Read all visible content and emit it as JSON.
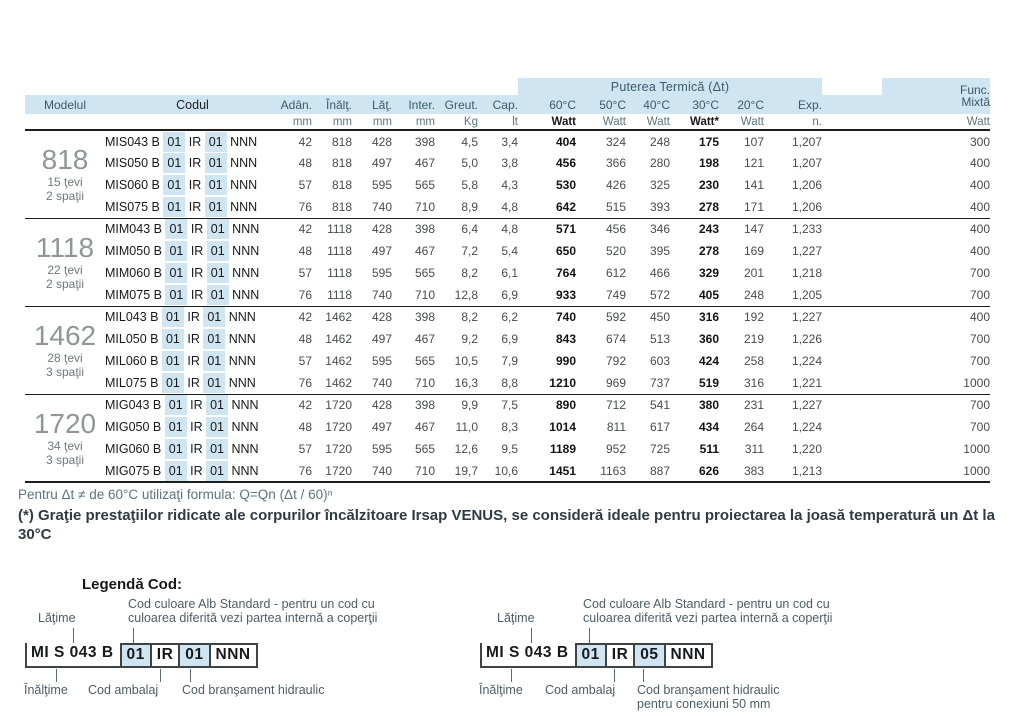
{
  "colors": {
    "header_band_blue": "#cfe6f2",
    "code_highlight_blue": "#cfe6f2",
    "rule_black": "#1c1c1c"
  },
  "table": {
    "power_header": "Puterea Termică (Δt)",
    "func_header_line1": "Func.",
    "func_header_line2": "Mixtă",
    "func_unit": "Watt",
    "columns": [
      "Modelul",
      "Codul",
      "Adân.",
      "Înălţ.",
      "Lăţ.",
      "Inter.",
      "Greut.",
      "Cap.",
      "60°C",
      "50°C",
      "40°C",
      "30°C",
      "20°C",
      "Exp."
    ],
    "units": [
      "mm",
      "mm",
      "mm",
      "mm",
      "Kg",
      "lt",
      "Watt",
      "Watt",
      "Watt",
      "Watt*",
      "Watt",
      "n."
    ],
    "groups": [
      {
        "model": "818",
        "tevi": "15 ţevi",
        "spatii": "2 spaţii",
        "rows": [
          {
            "code": [
              "MIS043 B",
              "01",
              "IR",
              "01",
              "NNN"
            ],
            "values": [
              "42",
              "818",
              "428",
              "398",
              "4,5",
              "3,4",
              "404",
              "324",
              "248",
              "175",
              "107",
              "1,207",
              "300"
            ]
          },
          {
            "code": [
              "MIS050 B",
              "01",
              "IR",
              "01",
              "NNN"
            ],
            "values": [
              "48",
              "818",
              "497",
              "467",
              "5,0",
              "3,8",
              "456",
              "366",
              "280",
              "198",
              "121",
              "1,207",
              "400"
            ]
          },
          {
            "code": [
              "MIS060 B",
              "01",
              "IR",
              "01",
              "NNN"
            ],
            "values": [
              "57",
              "818",
              "595",
              "565",
              "5,8",
              "4,3",
              "530",
              "426",
              "325",
              "230",
              "141",
              "1,206",
              "400"
            ]
          },
          {
            "code": [
              "MIS075 B",
              "01",
              "IR",
              "01",
              "NNN"
            ],
            "values": [
              "76",
              "818",
              "740",
              "710",
              "8,9",
              "4,8",
              "642",
              "515",
              "393",
              "278",
              "171",
              "1,206",
              "400"
            ]
          }
        ]
      },
      {
        "model": "1118",
        "tevi": "22 ţevi",
        "spatii": "2 spaţii",
        "rows": [
          {
            "code": [
              "MIM043 B",
              "01",
              "IR",
              "01",
              "NNN"
            ],
            "values": [
              "42",
              "1118",
              "428",
              "398",
              "6,4",
              "4,8",
              "571",
              "456",
              "346",
              "243",
              "147",
              "1,233",
              "400"
            ]
          },
          {
            "code": [
              "MIM050 B",
              "01",
              "IR",
              "01",
              "NNN"
            ],
            "values": [
              "48",
              "1118",
              "497",
              "467",
              "7,2",
              "5,4",
              "650",
              "520",
              "395",
              "278",
              "169",
              "1,227",
              "400"
            ]
          },
          {
            "code": [
              "MIM060 B",
              "01",
              "IR",
              "01",
              "NNN"
            ],
            "values": [
              "57",
              "1118",
              "595",
              "565",
              "8,2",
              "6,1",
              "764",
              "612",
              "466",
              "329",
              "201",
              "1,218",
              "700"
            ]
          },
          {
            "code": [
              "MIM075 B",
              "01",
              "IR",
              "01",
              "NNN"
            ],
            "values": [
              "76",
              "1118",
              "740",
              "710",
              "12,8",
              "6,9",
              "933",
              "749",
              "572",
              "405",
              "248",
              "1,205",
              "700"
            ]
          }
        ]
      },
      {
        "model": "1462",
        "tevi": "28 ţevi",
        "spatii": "3 spaţii",
        "rows": [
          {
            "code": [
              "MIL043 B",
              "01",
              "IR",
              "01",
              "NNN"
            ],
            "values": [
              "42",
              "1462",
              "428",
              "398",
              "8,2",
              "6,2",
              "740",
              "592",
              "450",
              "316",
              "192",
              "1,227",
              "400"
            ]
          },
          {
            "code": [
              "MIL050 B",
              "01",
              "IR",
              "01",
              "NNN"
            ],
            "values": [
              "48",
              "1462",
              "497",
              "467",
              "9,2",
              "6,9",
              "843",
              "674",
              "513",
              "360",
              "219",
              "1,226",
              "700"
            ]
          },
          {
            "code": [
              "MIL060 B",
              "01",
              "IR",
              "01",
              "NNN"
            ],
            "values": [
              "57",
              "1462",
              "595",
              "565",
              "10,5",
              "7,9",
              "990",
              "792",
              "603",
              "424",
              "258",
              "1,224",
              "700"
            ]
          },
          {
            "code": [
              "MIL075 B",
              "01",
              "IR",
              "01",
              "NNN"
            ],
            "values": [
              "76",
              "1462",
              "740",
              "710",
              "16,3",
              "8,8",
              "1210",
              "969",
              "737",
              "519",
              "316",
              "1,221",
              "1000"
            ]
          }
        ]
      },
      {
        "model": "1720",
        "tevi": "34 ţevi",
        "spatii": "3 spaţii",
        "rows": [
          {
            "code": [
              "MIG043 B",
              "01",
              "IR",
              "01",
              "NNN"
            ],
            "values": [
              "42",
              "1720",
              "428",
              "398",
              "9,9",
              "7,5",
              "890",
              "712",
              "541",
              "380",
              "231",
              "1,227",
              "700"
            ]
          },
          {
            "code": [
              "MIG050 B",
              "01",
              "IR",
              "01",
              "NNN"
            ],
            "values": [
              "48",
              "1720",
              "497",
              "467",
              "11,0",
              "8,3",
              "1014",
              "811",
              "617",
              "434",
              "264",
              "1,224",
              "700"
            ]
          },
          {
            "code": [
              "MIG060 B",
              "01",
              "IR",
              "01",
              "NNN"
            ],
            "values": [
              "57",
              "1720",
              "595",
              "565",
              "12,6",
              "9,5",
              "1189",
              "952",
              "725",
              "511",
              "311",
              "1,220",
              "1000"
            ]
          },
          {
            "code": [
              "MIG075 B",
              "01",
              "IR",
              "01",
              "NNN"
            ],
            "values": [
              "76",
              "1720",
              "740",
              "710",
              "19,7",
              "10,6",
              "1451",
              "1163",
              "887",
              "626",
              "383",
              "1,213",
              "1000"
            ]
          }
        ]
      }
    ]
  },
  "notes": {
    "formula": "Pentru Δt ≠ de 60°C utilizaţi formula: Q=Qn (Δt / 60)ⁿ",
    "asterisk": "(*) Graţie prestaţiilor ridicate ale corpurilor încălzitoare Irsap VENUS, se consideră ideale pentru proiectarea la joasă temperatură un Δt la 30°C"
  },
  "legend": {
    "title": "Legendă Cod:",
    "diagrams": [
      {
        "code": [
          "MI S 043 B",
          "01",
          "IR",
          "01",
          "NNN"
        ],
        "width_label": "Lăţime",
        "color_label_line1": "Cod culoare Alb Standard - pentru un cod cu",
        "color_label_line2": "culoarea diferită vezi partea internă a coperţii",
        "height_label": "Înălţime",
        "package_label": "Cod ambalaj",
        "hydraulic_label_line1": "Cod branşament hidraulic",
        "hydraulic_label_line2": ""
      },
      {
        "code": [
          "MI S 043 B",
          "01",
          "IR",
          "05",
          "NNN"
        ],
        "width_label": "Lăţime",
        "color_label_line1": "Cod culoare Alb Standard - pentru un cod cu",
        "color_label_line2": "culoarea diferită vezi partea internă a coperţii",
        "height_label": "Înălţime",
        "package_label": "Cod ambalaj",
        "hydraulic_label_line1": "Cod branşament hidraulic",
        "hydraulic_label_line2": "pentru conexiuni 50 mm"
      }
    ]
  }
}
